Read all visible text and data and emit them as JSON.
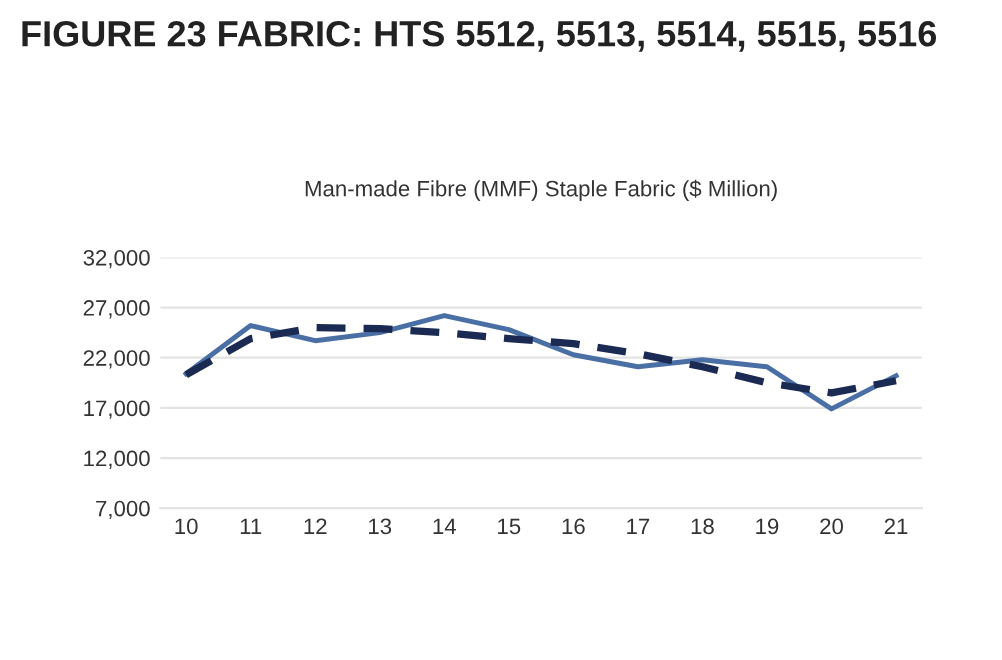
{
  "chart_data": {
    "type": "line",
    "title": "FIGURE 23 FABRIC: HTS 5512, 5513, 5514, 5515, 5516",
    "subtitle": "Man-made Fibre (MMF) Staple Fabric ($ Million)",
    "categories": [
      "10",
      "11",
      "12",
      "13",
      "14",
      "15",
      "16",
      "17",
      "18",
      "19",
      "20",
      "21"
    ],
    "series": [
      {
        "color": "#4a6fa5",
        "line_style": "solid",
        "values": [
          20400,
          25200,
          23700,
          24500,
          26200,
          24800,
          22300,
          21100,
          21800,
          21100,
          16900,
          20200
        ]
      },
      {
        "color": "#1b2a52",
        "line_style": "dashed",
        "values": [
          20300,
          23900,
          25000,
          24900,
          24500,
          23900,
          23400,
          22400,
          21100,
          19500,
          18500,
          19700
        ]
      }
    ],
    "ylim": [
      7000,
      32000
    ],
    "yticks": [
      {
        "value": 7000,
        "label": "7,000"
      },
      {
        "value": 12000,
        "label": "12,000"
      },
      {
        "value": 17000,
        "label": "17,000"
      },
      {
        "value": 22000,
        "label": "22,000"
      },
      {
        "value": 27000,
        "label": "27,000"
      },
      {
        "value": 32000,
        "label": "32,000"
      }
    ],
    "grid": "y",
    "legend": false
  }
}
